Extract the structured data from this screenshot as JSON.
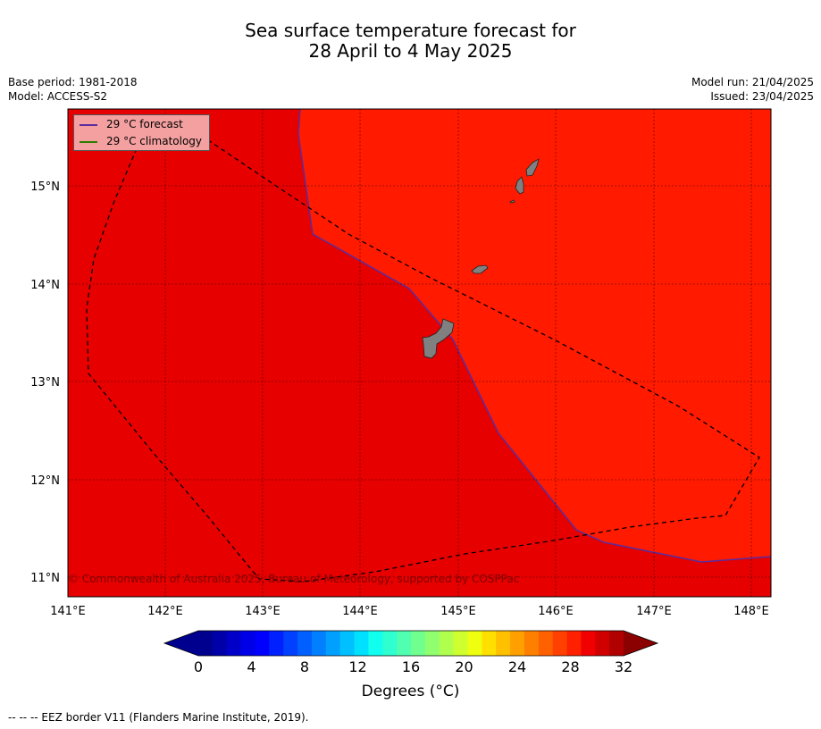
{
  "header": {
    "title_line1": "Sea surface temperature forecast for",
    "title_line2": "28 April to 4 May 2025",
    "base_period": "Base period: 1981-2018",
    "model": "Model: ACCESS-S2",
    "model_run": "Model run: 21/04/2025",
    "issued": "Issued: 23/04/2025"
  },
  "legend": {
    "forecast_label": "29 °C  forecast",
    "forecast_color": "#5a2ca0",
    "climatology_label": "29 °C  climatology",
    "climatology_color": "#2e7d00"
  },
  "map": {
    "copyright": "© Commonwealth of Australia 2025, Bureau of Meteorology, supported by COSPPac",
    "lon_labels": [
      "141°E",
      "142°E",
      "143°E",
      "144°E",
      "145°E",
      "146°E",
      "147°E",
      "148°E"
    ],
    "lat_labels": [
      "15°N",
      "14°N",
      "13°N",
      "12°N",
      "11°N"
    ],
    "warm_color": "#ff1a00",
    "cool_color": "#e60000",
    "land_color": "#808080"
  },
  "colorbar": {
    "ticks": [
      "0",
      "4",
      "8",
      "12",
      "16",
      "20",
      "24",
      "28",
      "32"
    ],
    "label": "Degrees (°C)",
    "colors": [
      "#00008f",
      "#0000a8",
      "#0000c8",
      "#0000e8",
      "#0000ff",
      "#0020ff",
      "#0040ff",
      "#0060ff",
      "#0080ff",
      "#00a0ff",
      "#00c0ff",
      "#00e0ff",
      "#10ffef",
      "#30ffcf",
      "#50ffaf",
      "#70ff8f",
      "#90ff6f",
      "#b0ff4f",
      "#d0ff2f",
      "#f0ff10",
      "#ffe000",
      "#ffc000",
      "#ffa000",
      "#ff8000",
      "#ff6000",
      "#ff4000",
      "#ff2000",
      "#f00000",
      "#d00000",
      "#b00000"
    ],
    "under_color": "#00008f",
    "over_color": "#8b0000"
  },
  "footnote": "--  --  -- EEZ border V11 (Flanders Marine Institute, 2019)."
}
